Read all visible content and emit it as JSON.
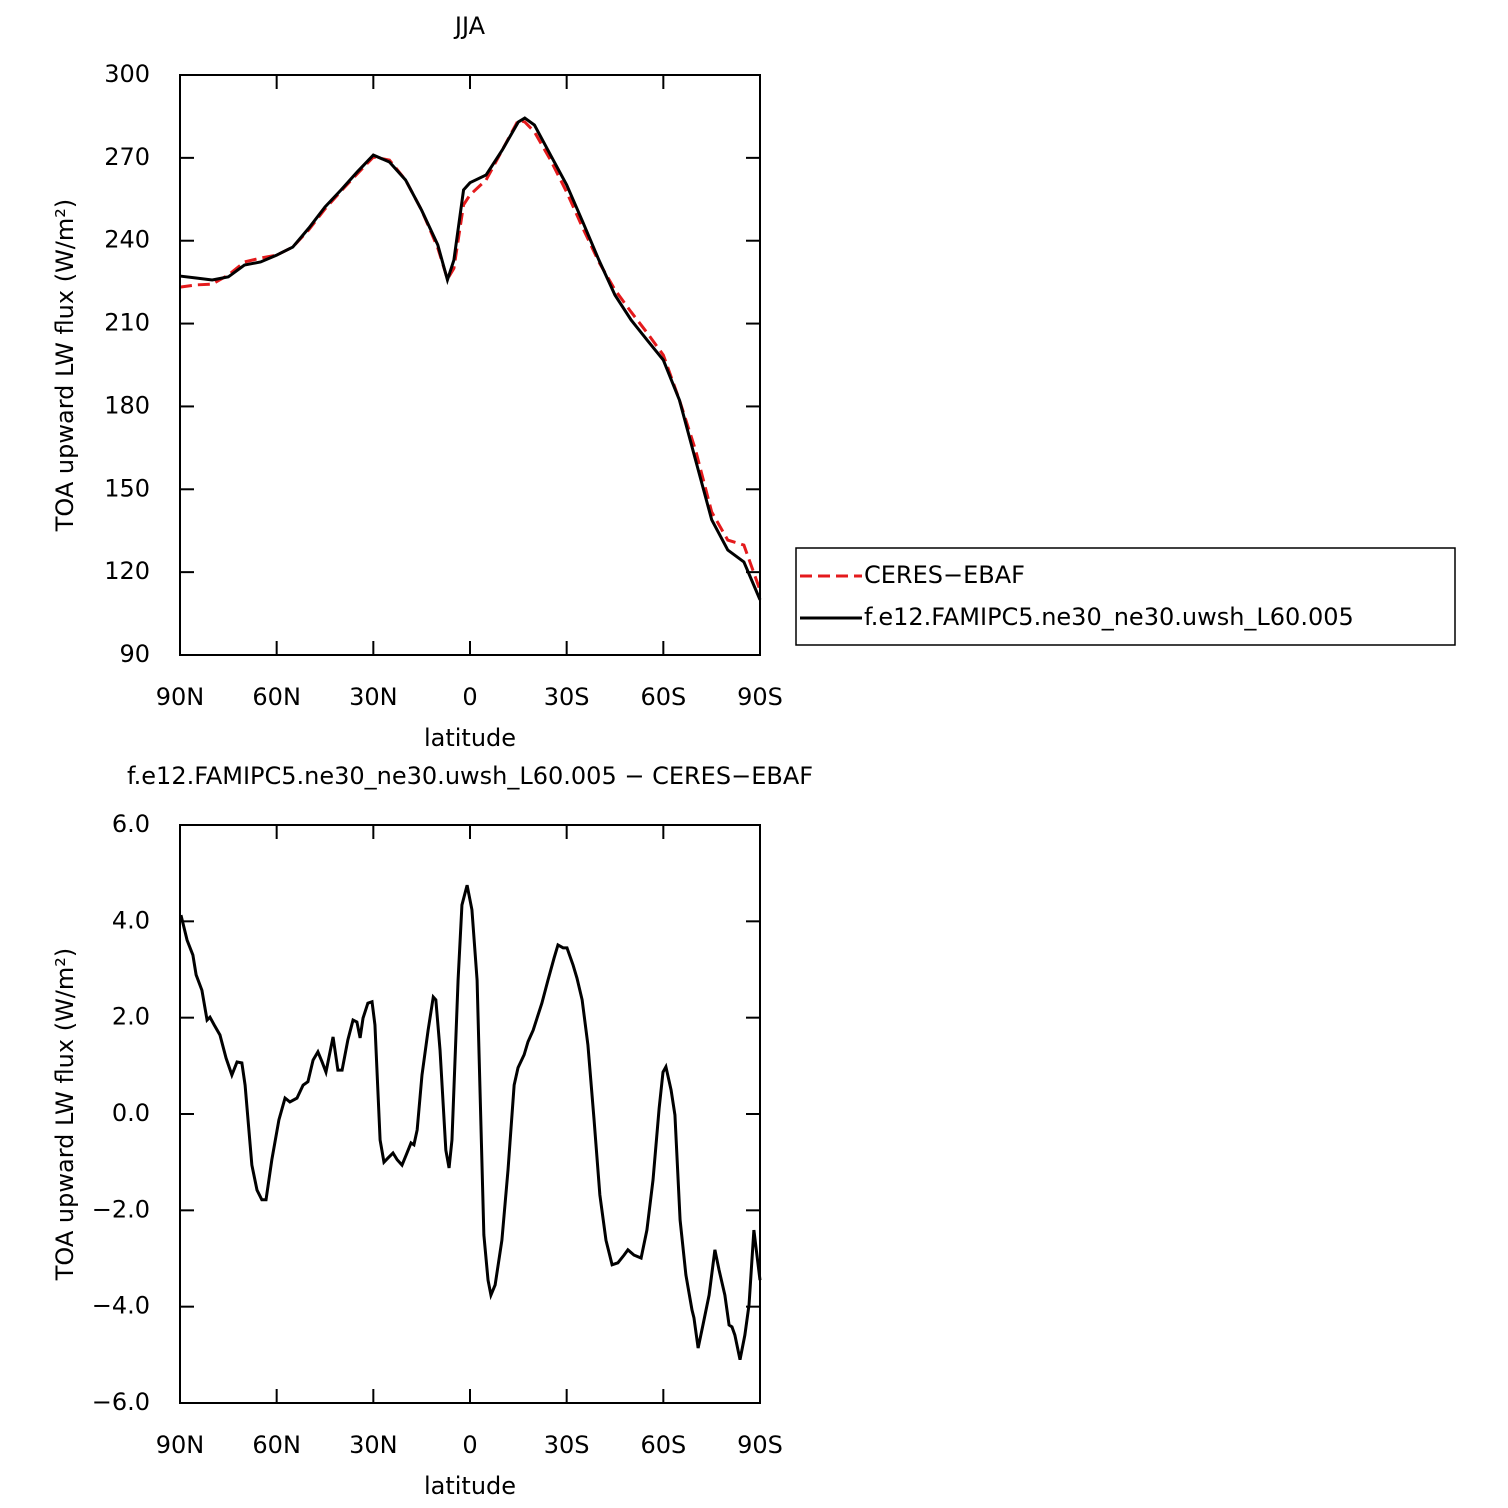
{
  "chart_data": [
    {
      "type": "line",
      "title": "JJA",
      "xlabel": "latitude",
      "ylabel": "TOA upward LW flux (W/m²)",
      "xlim": [
        90,
        -90
      ],
      "xticks": [
        {
          "value": 90,
          "label": "90N"
        },
        {
          "value": 60,
          "label": "60N"
        },
        {
          "value": 30,
          "label": "30N"
        },
        0,
        {
          "value": -30,
          "label": "30S"
        },
        {
          "value": -60,
          "label": "60S"
        },
        {
          "value": -90,
          "label": "90S"
        }
      ],
      "ylim": [
        90,
        300
      ],
      "yticks": [
        90,
        120,
        150,
        180,
        210,
        240,
        270,
        300
      ],
      "x": [
        90,
        85,
        80,
        75,
        70,
        65,
        60,
        55,
        50,
        45,
        40,
        35,
        30,
        25,
        20,
        15,
        10,
        7,
        5,
        2,
        0,
        -5,
        -10,
        -15,
        -17,
        -20,
        -25,
        -30,
        -35,
        -40,
        -45,
        -50,
        -55,
        -60,
        -65,
        -70,
        -75,
        -80,
        -85,
        -90
      ],
      "series": [
        {
          "name": "CERES−EBAF",
          "color": "#e41a1c",
          "linestyle": "dashed",
          "values": [
            223.2,
            224,
            224.3,
            227.6,
            232.3,
            233.7,
            234.8,
            237.7,
            244,
            251.5,
            258,
            264.2,
            270.3,
            269.2,
            262,
            251,
            237.4,
            226.1,
            230,
            253,
            256.6,
            262,
            272.8,
            283.7,
            283,
            279.4,
            269.2,
            257.6,
            244.6,
            232.3,
            222.2,
            214.2,
            206.6,
            198.6,
            182.3,
            164.2,
            141.8,
            131.6,
            129.8,
            113.5
          ]
        },
        {
          "name": "f.e12.FAMIPC5.ne30_ne30.uwsh_L60.005",
          "color": "#000000",
          "linestyle": "solid",
          "values": [
            227.2,
            226.5,
            225.8,
            226.9,
            231.2,
            232.3,
            234.8,
            237.7,
            244.6,
            252.2,
            258.4,
            264.9,
            271,
            268.5,
            262,
            251,
            238.5,
            225.8,
            233,
            258.4,
            261,
            263.8,
            272.8,
            283,
            284.4,
            281.9,
            271,
            260.2,
            246.8,
            233,
            220.3,
            211.3,
            204,
            196.8,
            182.3,
            160.6,
            139,
            128,
            123.7,
            110
          ]
        }
      ]
    },
    {
      "type": "line",
      "title": "f.e12.FAMIPC5.ne30_ne30.uwsh_L60.005 − CERES−EBAF",
      "xlabel": "latitude",
      "ylabel": "TOA upward LW flux (W/m²)",
      "xlim": [
        90,
        -90
      ],
      "xticks": [
        {
          "value": 90,
          "label": "90N"
        },
        {
          "value": 60,
          "label": "60N"
        },
        {
          "value": 30,
          "label": "30N"
        },
        0,
        {
          "value": -30,
          "label": "30S"
        },
        {
          "value": -60,
          "label": "60S"
        },
        {
          "value": -90,
          "label": "90S"
        }
      ],
      "ylim": [
        -6,
        6
      ],
      "yticks": [
        {
          "value": -6,
          "label": "−6.0"
        },
        {
          "value": -4,
          "label": "−4.0"
        },
        {
          "value": -2,
          "label": "−2.0"
        },
        {
          "value": 0,
          "label": "0.0"
        },
        {
          "value": 2,
          "label": "2.0"
        },
        {
          "value": 4,
          "label": "4.0"
        },
        {
          "value": 6,
          "label": "6.0"
        }
      ],
      "x": [
        89.7,
        87.8,
        86,
        85,
        83.2,
        81.6,
        80.7,
        79.4,
        77.6,
        75.7,
        73.9,
        72.3,
        70.8,
        69.8,
        67.7,
        66.1,
        64.6,
        63.3,
        61.5,
        59.3,
        57.4,
        55.9,
        53.7,
        51.8,
        50.3,
        48.7,
        47.2,
        45.9,
        44.7,
        42.5,
        41,
        39.7,
        37.9,
        36.3,
        35.1,
        34.1,
        33.2,
        31.7,
        30.4,
        29.5,
        27.9,
        26.7,
        25.4,
        23.9,
        22.6,
        21.1,
        19.8,
        18.3,
        17.4,
        16.4,
        14.9,
        13,
        11.4,
        10.6,
        9.3,
        7.5,
        6.5,
        5.6,
        3.7,
        2.5,
        0.9,
        -0.6,
        -2.2,
        -4.3,
        -5.6,
        -6.5,
        -7.8,
        -9.9,
        -11.8,
        -13.7,
        -14.9,
        -16.8,
        -18,
        -19.6,
        -20.8,
        -22.3,
        -24.2,
        -26.1,
        -27.3,
        -28.9,
        -30.1,
        -32,
        -33.2,
        -34.8,
        -36.6,
        -38.5,
        -40.3,
        -42.2,
        -44.1,
        -45.9,
        -47.8,
        -49,
        -50.9,
        -53.1,
        -54.9,
        -56.8,
        -58.7,
        -59.9,
        -60.8,
        -62.4,
        -63.6,
        -65.2,
        -67,
        -68.9,
        -69.5,
        -70.8,
        -72.3,
        -74.2,
        -76,
        -77.3,
        -79.1,
        -80.4,
        -81.3,
        -82.2,
        -83.8,
        -85.3,
        -86.6,
        -88.1,
        -90
      ],
      "series": [
        {
          "color": "#000000",
          "linestyle": "solid",
          "values": [
            4.13,
            3.61,
            3.3,
            2.89,
            2.57,
            1.95,
            2.01,
            1.85,
            1.64,
            1.16,
            0.81,
            1.08,
            1.06,
            0.6,
            -1.06,
            -1.58,
            -1.78,
            -1.78,
            -0.95,
            -0.12,
            0.33,
            0.25,
            0.33,
            0.6,
            0.67,
            1.12,
            1.29,
            1.08,
            0.87,
            1.6,
            0.91,
            0.91,
            1.54,
            1.95,
            1.91,
            1.58,
            1.99,
            2.3,
            2.33,
            1.85,
            -0.54,
            -1.0,
            -0.91,
            -0.81,
            -0.95,
            -1.06,
            -0.85,
            -0.6,
            -0.64,
            -0.33,
            0.81,
            1.74,
            2.43,
            2.37,
            1.33,
            -0.75,
            -1.12,
            -0.54,
            2.78,
            4.34,
            4.75,
            4.24,
            2.78,
            -2.51,
            -3.45,
            -3.76,
            -3.55,
            -2.62,
            -1.16,
            0.6,
            0.96,
            1.23,
            1.5,
            1.74,
            1.99,
            2.3,
            2.78,
            3.24,
            3.51,
            3.45,
            3.45,
            3.09,
            2.82,
            2.37,
            1.43,
            -0.12,
            -1.68,
            -2.62,
            -3.13,
            -3.09,
            -2.93,
            -2.82,
            -2.93,
            -2.99,
            -2.41,
            -1.37,
            0.12,
            0.87,
            0.98,
            0.5,
            -0.02,
            -2.2,
            -3.34,
            -4.07,
            -4.23,
            -4.86,
            -4.38,
            -3.76,
            -2.82,
            -3.24,
            -3.76,
            -4.38,
            -4.42,
            -4.59,
            -5.1,
            -4.59,
            -3.96,
            -2.41,
            -3.45
          ]
        }
      ]
    }
  ]
}
